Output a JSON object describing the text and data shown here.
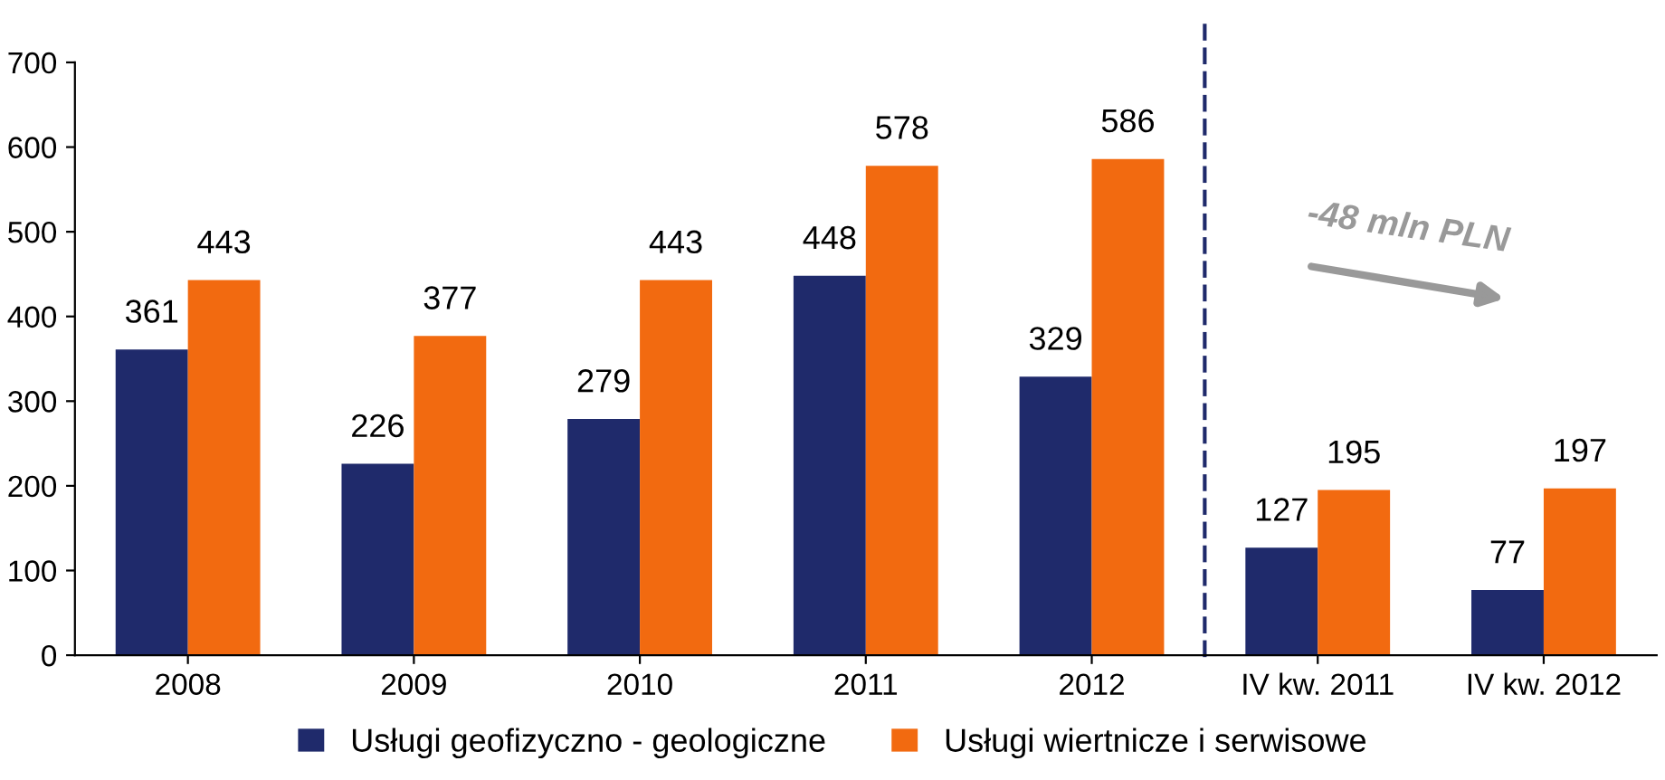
{
  "chart_data": {
    "type": "bar",
    "categories": [
      "2008",
      "2009",
      "2010",
      "2011",
      "2012",
      "IV kw. 2011",
      "IV kw. 2012"
    ],
    "series": [
      {
        "name": "Usługi geofizyczno - geologiczne",
        "color": "#1f2a6b",
        "values": [
          361,
          226,
          279,
          448,
          329,
          127,
          77
        ]
      },
      {
        "name": "Usługi wiertnicze i serwisowe",
        "color": "#f26a10",
        "values": [
          443,
          377,
          443,
          578,
          586,
          195,
          197
        ]
      }
    ],
    "ylim": [
      0,
      700
    ],
    "yticks": [
      0,
      100,
      200,
      300,
      400,
      500,
      600,
      700
    ],
    "data_labels": true,
    "grid": false,
    "legend": "bottom",
    "annotations": [
      "-48 mln PLN"
    ]
  }
}
